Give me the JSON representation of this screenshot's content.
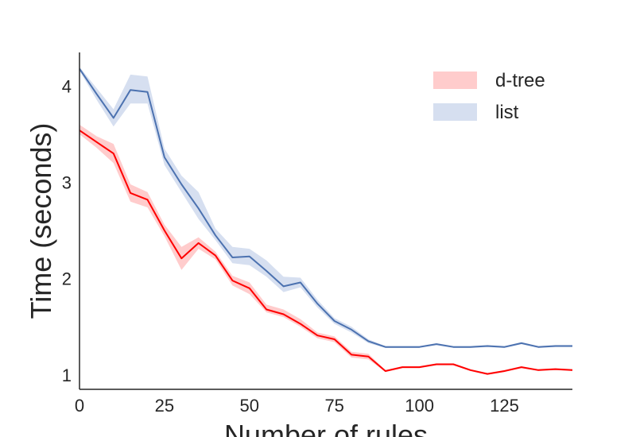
{
  "chart_data": {
    "type": "line",
    "title": "",
    "xlabel": "Number of rules",
    "ylabel": "Time (seconds)",
    "xlim": [
      0,
      145
    ],
    "ylim": [
      0.85,
      4.35
    ],
    "xticks": [
      0,
      25,
      50,
      75,
      100,
      125
    ],
    "yticks": [
      1,
      2,
      3,
      4
    ],
    "grid": false,
    "legend": "top-right",
    "x": [
      0,
      5,
      10,
      15,
      20,
      25,
      30,
      35,
      40,
      45,
      50,
      55,
      60,
      65,
      70,
      75,
      80,
      85,
      90,
      95,
      100,
      105,
      110,
      115,
      120,
      125,
      130,
      135,
      140,
      145
    ],
    "series": [
      {
        "name": "d-tree",
        "color": "#ff0000",
        "band_color": "#ffcccc",
        "values": [
          3.54,
          3.42,
          3.3,
          2.89,
          2.82,
          2.5,
          2.21,
          2.37,
          2.24,
          1.98,
          1.9,
          1.68,
          1.63,
          1.53,
          1.41,
          1.37,
          1.21,
          1.19,
          1.04,
          1.08,
          1.08,
          1.11,
          1.11,
          1.05,
          1.01,
          1.04,
          1.08,
          1.05,
          1.06,
          1.05
        ],
        "lower": [
          3.5,
          3.36,
          3.2,
          2.8,
          2.74,
          2.44,
          2.09,
          2.31,
          2.2,
          1.93,
          1.84,
          1.65,
          1.6,
          1.5,
          1.38,
          1.34,
          1.18,
          1.16,
          1.03,
          1.07,
          1.07,
          1.1,
          1.1,
          1.04,
          1.0,
          1.03,
          1.07,
          1.04,
          1.05,
          1.04
        ],
        "upper": [
          3.6,
          3.48,
          3.4,
          2.98,
          2.9,
          2.56,
          2.33,
          2.43,
          2.28,
          2.03,
          1.96,
          1.73,
          1.68,
          1.58,
          1.44,
          1.4,
          1.24,
          1.22,
          1.05,
          1.09,
          1.09,
          1.12,
          1.12,
          1.06,
          1.02,
          1.05,
          1.09,
          1.06,
          1.07,
          1.06
        ]
      },
      {
        "name": "list",
        "color": "#4c72b0",
        "band_color": "#d6dff0",
        "values": [
          4.18,
          3.92,
          3.67,
          3.96,
          3.94,
          3.26,
          2.98,
          2.73,
          2.45,
          2.22,
          2.23,
          2.08,
          1.92,
          1.96,
          1.74,
          1.56,
          1.47,
          1.35,
          1.29,
          1.29,
          1.29,
          1.32,
          1.29,
          1.29,
          1.3,
          1.29,
          1.33,
          1.29,
          1.3,
          1.3
        ],
        "lower": [
          4.16,
          3.86,
          3.58,
          3.82,
          3.82,
          3.18,
          2.9,
          2.62,
          2.4,
          2.16,
          2.14,
          2.02,
          1.86,
          1.91,
          1.7,
          1.53,
          1.44,
          1.33,
          1.28,
          1.28,
          1.28,
          1.31,
          1.28,
          1.28,
          1.29,
          1.28,
          1.32,
          1.28,
          1.29,
          1.29
        ],
        "upper": [
          4.2,
          3.98,
          3.76,
          4.12,
          4.1,
          3.35,
          3.07,
          2.9,
          2.52,
          2.33,
          2.31,
          2.19,
          2.02,
          2.01,
          1.78,
          1.59,
          1.5,
          1.37,
          1.3,
          1.3,
          1.3,
          1.33,
          1.3,
          1.3,
          1.31,
          1.3,
          1.34,
          1.3,
          1.31,
          1.31
        ]
      }
    ]
  }
}
